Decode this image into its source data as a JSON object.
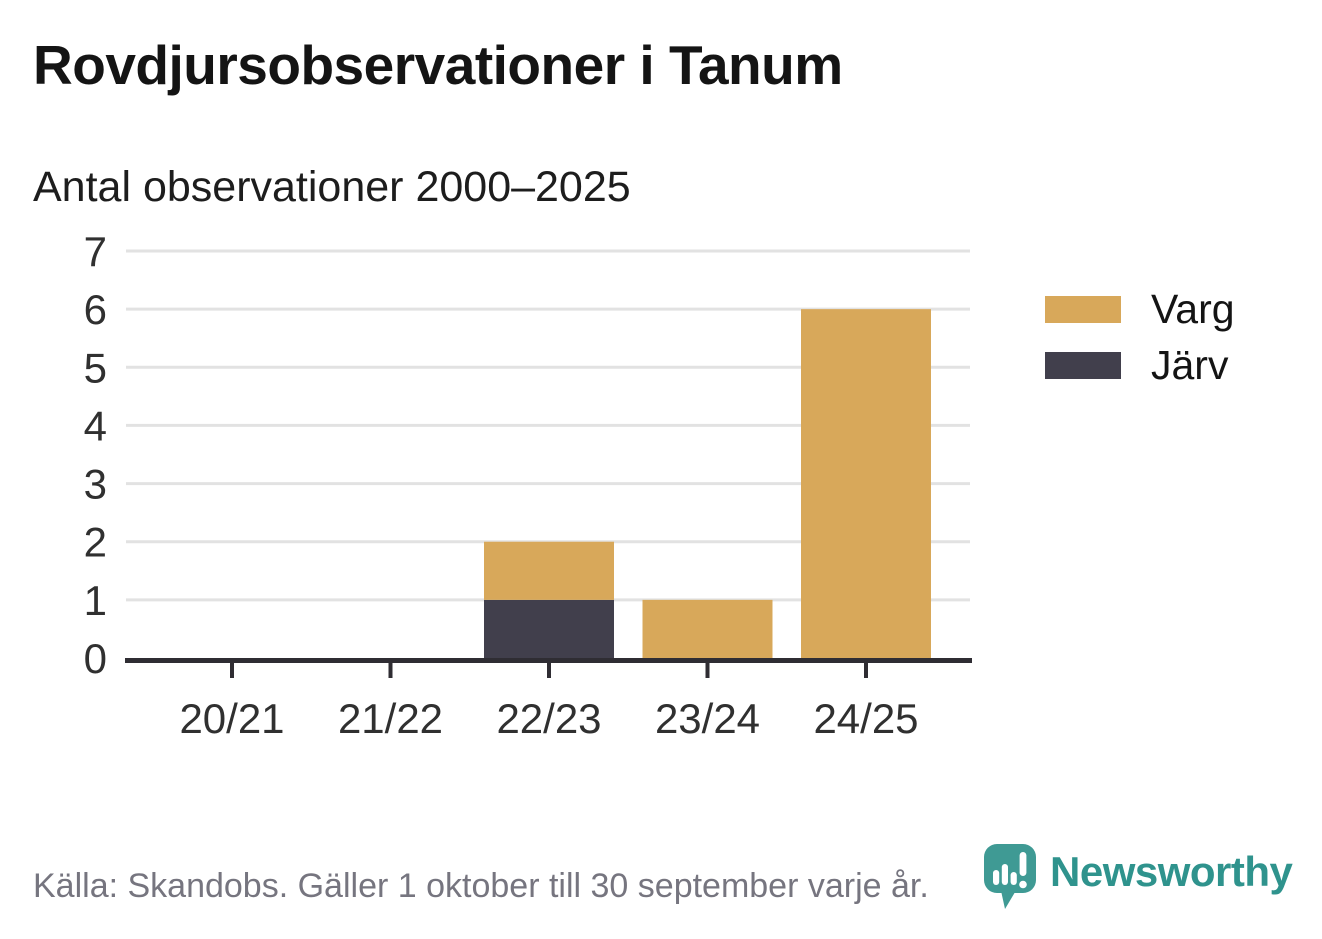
{
  "header": {
    "title": "Rovdjursobservationer i Tanum",
    "subtitle": "Antal observationer 2000–2025"
  },
  "chart_data": {
    "type": "bar",
    "stacked": true,
    "title": "Rovdjursobservationer i Tanum",
    "subtitle": "Antal observationer 2000–2025",
    "categories": [
      "20/21",
      "21/22",
      "22/23",
      "23/24",
      "24/25"
    ],
    "series": [
      {
        "name": "Järv",
        "color": "#413F4C",
        "values": [
          0,
          0,
          1,
          0,
          0
        ]
      },
      {
        "name": "Varg",
        "color": "#D8A85A",
        "values": [
          0,
          0,
          1,
          1,
          6
        ]
      }
    ],
    "totals": [
      0,
      0,
      2,
      1,
      6
    ],
    "xlabel": "",
    "ylabel": "",
    "ylim": [
      0,
      7
    ],
    "yticks": [
      0,
      1,
      2,
      3,
      4,
      5,
      6,
      7
    ],
    "grid": true,
    "legend_position": "top-right",
    "legend_order": [
      "Varg",
      "Järv"
    ]
  },
  "legend": {
    "items": [
      {
        "label": "Varg",
        "color": "#D8A85A"
      },
      {
        "label": "Järv",
        "color": "#413F4C"
      }
    ]
  },
  "footer": {
    "source": "Källa: Skandobs. Gäller 1 oktober till 30 september varje år.",
    "brand_name": "Newsworthy"
  },
  "colors": {
    "varg_gold": "#D8A85A",
    "jarv_dark": "#413F4C",
    "axis_line": "#2F2D33",
    "gridline": "#E2E2E2",
    "tick_label": "#303030",
    "brand_teal": "#2F938D",
    "source_gray": "#76757F",
    "background": "#FFFFFF"
  }
}
